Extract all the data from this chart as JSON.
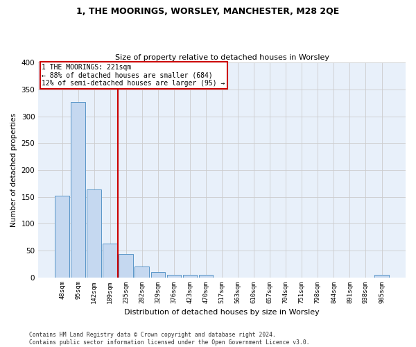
{
  "title1": "1, THE MOORINGS, WORSLEY, MANCHESTER, M28 2QE",
  "title2": "Size of property relative to detached houses in Worsley",
  "xlabel": "Distribution of detached houses by size in Worsley",
  "ylabel": "Number of detached properties",
  "footer1": "Contains HM Land Registry data © Crown copyright and database right 2024.",
  "footer2": "Contains public sector information licensed under the Open Government Licence v3.0.",
  "categories": [
    "48sqm",
    "95sqm",
    "142sqm",
    "189sqm",
    "235sqm",
    "282sqm",
    "329sqm",
    "376sqm",
    "423sqm",
    "470sqm",
    "517sqm",
    "563sqm",
    "610sqm",
    "657sqm",
    "704sqm",
    "751sqm",
    "798sqm",
    "844sqm",
    "891sqm",
    "938sqm",
    "985sqm"
  ],
  "values": [
    152,
    327,
    164,
    63,
    43,
    20,
    10,
    5,
    4,
    4,
    0,
    0,
    0,
    0,
    0,
    0,
    0,
    0,
    0,
    0,
    4
  ],
  "bar_color": "#c5d8f0",
  "bar_edge_color": "#5a96c8",
  "grid_color": "#cccccc",
  "bg_color": "#e8f0fa",
  "property_label": "1 THE MOORINGS: 221sqm",
  "annotation_line1": "← 88% of detached houses are smaller (684)",
  "annotation_line2": "12% of semi-detached houses are larger (95) →",
  "vline_color": "#cc0000",
  "annotation_box_color": "#cc0000",
  "vline_x": 3.5,
  "ylim": [
    0,
    400
  ],
  "yticks": [
    0,
    50,
    100,
    150,
    200,
    250,
    300,
    350,
    400
  ]
}
